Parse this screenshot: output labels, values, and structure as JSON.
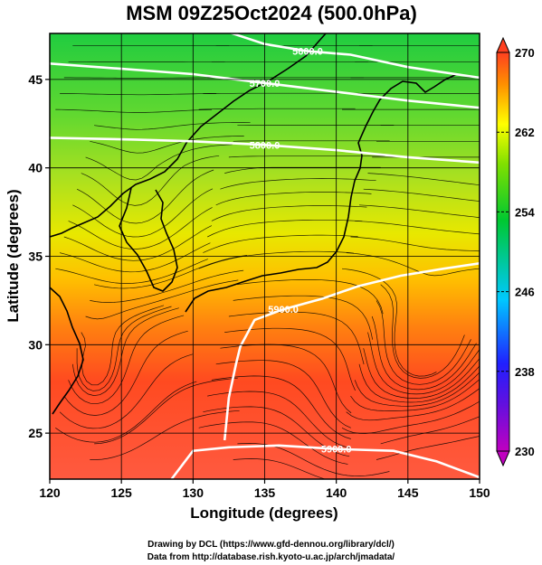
{
  "chart_data": {
    "type": "heatmap",
    "title": "MSM 09Z25Oct2024 (500.0hPa)",
    "xlabel": "Longitude (degrees)",
    "ylabel": "Latitude  (degrees)",
    "xlim": [
      120,
      150
    ],
    "ylim": [
      22.4,
      47.6
    ],
    "x_ticks": [
      120,
      125,
      130,
      135,
      140,
      145,
      150
    ],
    "y_ticks": [
      25,
      30,
      35,
      40,
      45
    ],
    "grid": true,
    "colorbar": {
      "min": 230,
      "max": 270,
      "ticks": [
        230,
        238,
        246,
        254,
        262,
        270
      ],
      "colors": [
        "#c000c0",
        "#2020ff",
        "#00c8ff",
        "#00c830",
        "#ffff00",
        "#ff4020"
      ]
    },
    "contours": [
      {
        "label": "5800.0",
        "points": [
          [
            120,
            41.7
          ],
          [
            126,
            41.6
          ],
          [
            130,
            41.5
          ],
          [
            135,
            41.3
          ],
          [
            140,
            41.0
          ],
          [
            145,
            40.6
          ],
          [
            150,
            40.3
          ]
        ]
      },
      {
        "label": "5700.0",
        "points": [
          [
            120,
            45.9
          ],
          [
            125,
            45.6
          ],
          [
            130,
            45.3
          ],
          [
            135,
            44.8
          ],
          [
            140,
            44.3
          ],
          [
            145,
            43.8
          ],
          [
            150,
            43.4
          ]
        ]
      },
      {
        "label": "5600.0",
        "points": [
          [
            129,
            48.5
          ],
          [
            132,
            47.8
          ],
          [
            135,
            47.0
          ],
          [
            138,
            46.6
          ],
          [
            141,
            46.4
          ],
          [
            145,
            45.7
          ],
          [
            150,
            45.1
          ]
        ]
      },
      {
        "label": "5900.0",
        "points": [
          [
            132.2,
            24.6
          ],
          [
            132.5,
            27.0
          ],
          [
            133.0,
            28.9
          ],
          [
            133.3,
            29.9
          ],
          [
            134.3,
            31.4
          ],
          [
            136.3,
            32.0
          ],
          [
            139.0,
            32.6
          ],
          [
            141.5,
            33.3
          ],
          [
            144.5,
            33.9
          ],
          [
            147.5,
            34.3
          ],
          [
            150.0,
            34.6
          ]
        ]
      },
      {
        "label": "5900.0",
        "points": [
          [
            128.5,
            22.4
          ],
          [
            130.0,
            24.0
          ],
          [
            132.5,
            24.2
          ],
          [
            136.0,
            24.3
          ],
          [
            140.0,
            24.1
          ],
          [
            144.0,
            24.0
          ],
          [
            147.0,
            23.4
          ],
          [
            150.0,
            22.5
          ]
        ]
      }
    ]
  },
  "footer": {
    "line1": "Drawing by DCL (https://www.gfd-dennou.org/library/dcl/)",
    "line2": "Data from http://database.rish.kyoto-u.ac.jp/arch/jmadata/"
  }
}
